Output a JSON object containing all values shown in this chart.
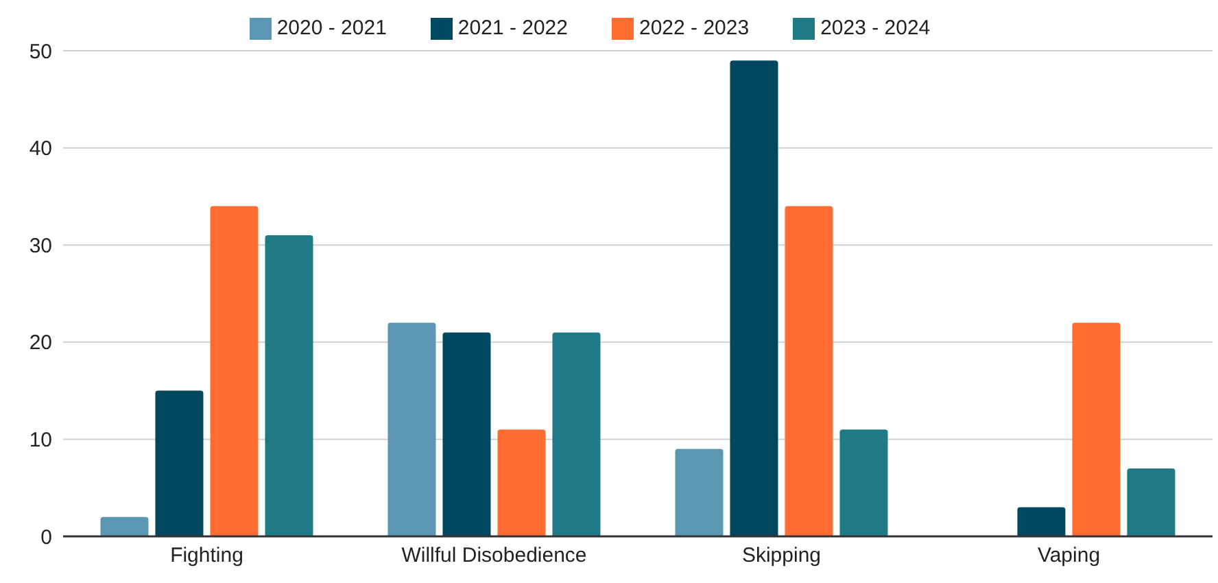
{
  "chart_data": {
    "type": "bar",
    "categories": [
      "Fighting",
      "Willful Disobedience",
      "Skipping",
      "Vaping"
    ],
    "series": [
      {
        "name": "2020 - 2021",
        "color": "#5b96b3",
        "values": [
          2,
          22,
          9,
          null
        ]
      },
      {
        "name": "2021 - 2022",
        "color": "#00475f",
        "values": [
          15,
          21,
          49,
          3
        ]
      },
      {
        "name": "2022 - 2023",
        "color": "#ff6d33",
        "values": [
          34,
          11,
          34,
          22
        ]
      },
      {
        "name": "2023 - 2024",
        "color": "#1f7a85",
        "values": [
          31,
          21,
          11,
          7
        ]
      }
    ],
    "ylim": [
      0,
      50
    ],
    "yticks": [
      0,
      10,
      20,
      30,
      40,
      50
    ],
    "grid": "y",
    "legend": "top"
  }
}
